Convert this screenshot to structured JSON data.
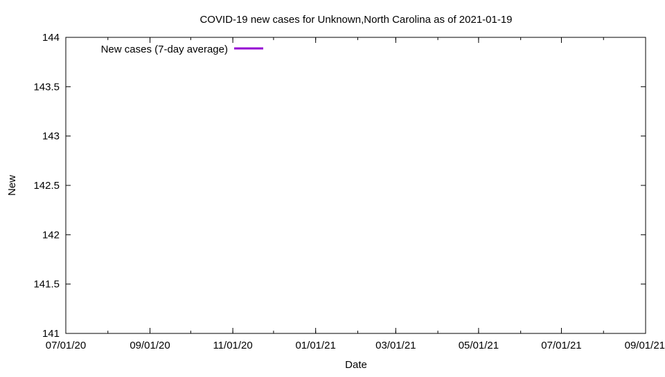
{
  "chart_data": {
    "type": "line",
    "title": "COVID-19 new cases for Unknown,North Carolina as of 2021-01-19",
    "xlabel": "Date",
    "ylabel": "New",
    "x_tick_labels": [
      "07/01/20",
      "09/01/20",
      "11/01/20",
      "01/01/21",
      "03/01/21",
      "05/01/21",
      "07/01/21",
      "09/01/21"
    ],
    "xlim": [
      "2020-07-01",
      "2021-09-01"
    ],
    "y_ticks": [
      141,
      141.5,
      142,
      142.5,
      143,
      143.5,
      144
    ],
    "ylim": [
      141,
      144
    ],
    "grid": false,
    "legend_position": "top-left",
    "series": [
      {
        "name": "New cases (7-day average)",
        "color": "#9400d3",
        "points": []
      }
    ]
  }
}
